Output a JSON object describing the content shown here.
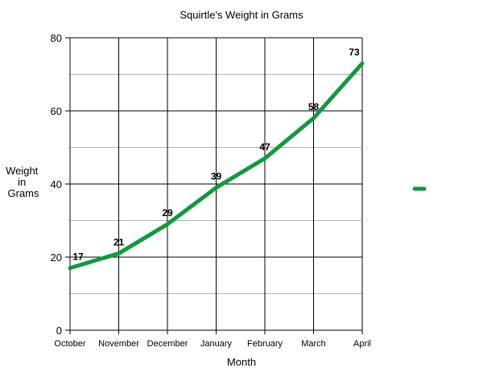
{
  "chart_data": {
    "type": "line",
    "title": "Squirtle's Weight in Grams",
    "xlabel": "Month",
    "ylabel_lines": [
      "Weight",
      "in",
      "Grams"
    ],
    "categories": [
      "October",
      "November",
      "December",
      "January",
      "February",
      "March",
      "April"
    ],
    "series": [
      {
        "values": [
          17,
          21,
          29,
          39,
          47,
          58,
          73
        ],
        "color": "#0f9b3a"
      }
    ],
    "ylim": [
      0,
      80
    ],
    "yticks": [
      0,
      20,
      40,
      60,
      80
    ],
    "minor_grid": [
      10,
      30,
      50,
      70
    ],
    "grid": true,
    "legend": "right"
  }
}
